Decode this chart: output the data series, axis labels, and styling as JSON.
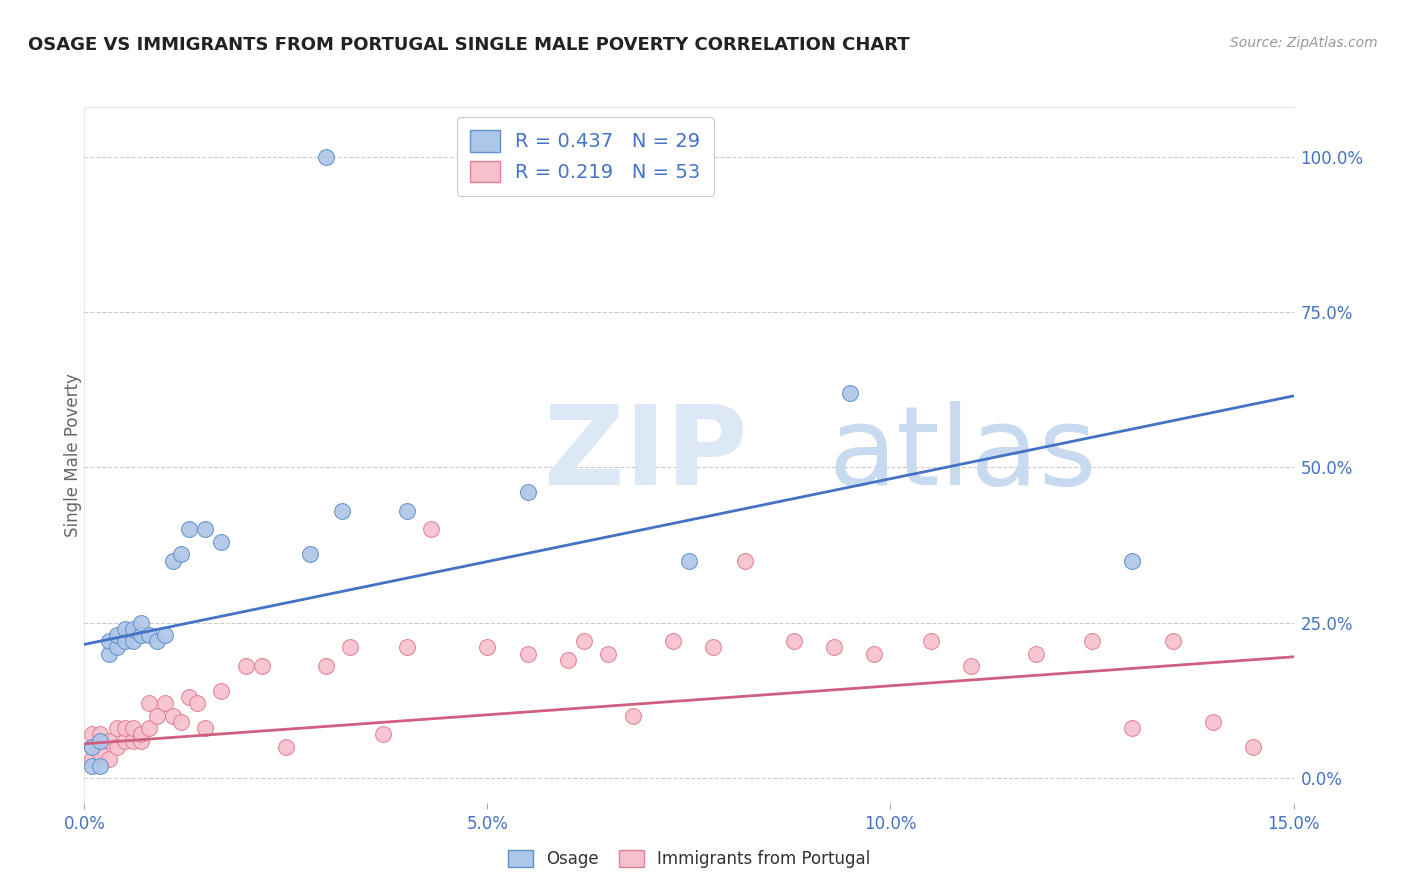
{
  "title": "OSAGE VS IMMIGRANTS FROM PORTUGAL SINGLE MALE POVERTY CORRELATION CHART",
  "source": "Source: ZipAtlas.com",
  "ylabel": "Single Male Poverty",
  "xlim": [
    0.0,
    0.15
  ],
  "ylim": [
    -0.04,
    1.08
  ],
  "xticks": [
    0.0,
    0.05,
    0.1,
    0.15
  ],
  "xticklabels": [
    "0.0%",
    "5.0%",
    "10.0%",
    "15.0%"
  ],
  "yticks_right": [
    0.0,
    0.25,
    0.5,
    0.75,
    1.0
  ],
  "yticklabels_right": [
    "0.0%",
    "25.0%",
    "50.0%",
    "75.0%",
    "100.0%"
  ],
  "osage_R": 0.437,
  "osage_N": 29,
  "portugal_R": 0.219,
  "portugal_N": 53,
  "osage_color": "#aec6e8",
  "portugal_color": "#f7c0ce",
  "osage_edge_color": "#6090c8",
  "portugal_edge_color": "#e08090",
  "osage_line_color": "#4472c4",
  "portugal_line_color": "#d06080",
  "background_color": "#ffffff",
  "watermark_zip": "ZIP",
  "watermark_atlas": "atlas",
  "watermark_zip_color": "#dce8f5",
  "watermark_atlas_color": "#c8daf0",
  "legend_label_osage": "Osage",
  "legend_label_portugal": "Immigrants from Portugal",
  "osage_x": [
    0.001,
    0.001,
    0.002,
    0.002,
    0.003,
    0.003,
    0.004,
    0.004,
    0.005,
    0.005,
    0.006,
    0.006,
    0.007,
    0.007,
    0.008,
    0.009,
    0.01,
    0.011,
    0.012,
    0.013,
    0.015,
    0.017,
    0.028,
    0.032,
    0.04,
    0.055,
    0.075,
    0.095,
    0.13
  ],
  "osage_y": [
    0.02,
    0.05,
    0.02,
    0.06,
    0.2,
    0.22,
    0.21,
    0.23,
    0.22,
    0.24,
    0.22,
    0.24,
    0.23,
    0.25,
    0.23,
    0.22,
    0.23,
    0.35,
    0.36,
    0.4,
    0.4,
    0.38,
    0.36,
    0.43,
    0.43,
    0.46,
    0.35,
    0.62,
    0.35
  ],
  "osage_outlier_x": [
    0.03
  ],
  "osage_outlier_y": [
    1.0
  ],
  "portugal_x": [
    0.001,
    0.001,
    0.001,
    0.002,
    0.002,
    0.003,
    0.003,
    0.004,
    0.004,
    0.005,
    0.005,
    0.006,
    0.006,
    0.007,
    0.007,
    0.008,
    0.008,
    0.009,
    0.01,
    0.011,
    0.012,
    0.013,
    0.014,
    0.015,
    0.017,
    0.02,
    0.022,
    0.025,
    0.03,
    0.033,
    0.037,
    0.04,
    0.043,
    0.05,
    0.055,
    0.06,
    0.062,
    0.065,
    0.068,
    0.073,
    0.078,
    0.082,
    0.088,
    0.093,
    0.098,
    0.105,
    0.11,
    0.118,
    0.125,
    0.13,
    0.135,
    0.14,
    0.145
  ],
  "portugal_y": [
    0.03,
    0.05,
    0.07,
    0.04,
    0.07,
    0.03,
    0.06,
    0.05,
    0.08,
    0.06,
    0.08,
    0.06,
    0.08,
    0.06,
    0.07,
    0.08,
    0.12,
    0.1,
    0.12,
    0.1,
    0.09,
    0.13,
    0.12,
    0.08,
    0.14,
    0.18,
    0.18,
    0.05,
    0.18,
    0.21,
    0.07,
    0.21,
    0.4,
    0.21,
    0.2,
    0.19,
    0.22,
    0.2,
    0.1,
    0.22,
    0.21,
    0.35,
    0.22,
    0.21,
    0.2,
    0.22,
    0.18,
    0.2,
    0.22,
    0.08,
    0.22,
    0.09,
    0.05
  ],
  "osage_line_x0": 0.0,
  "osage_line_y0": 0.215,
  "osage_line_x1": 0.15,
  "osage_line_y1": 0.615,
  "portugal_line_x0": 0.0,
  "portugal_line_y0": 0.055,
  "portugal_line_x1": 0.15,
  "portugal_line_y1": 0.195
}
